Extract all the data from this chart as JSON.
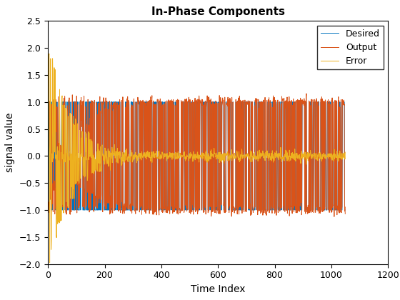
{
  "title": "In-Phase Components",
  "xlabel": "Time Index",
  "ylabel": "signal value",
  "xlim": [
    0,
    1200
  ],
  "ylim": [
    -2,
    2.5
  ],
  "xticks": [
    0,
    200,
    400,
    600,
    800,
    1000,
    1200
  ],
  "yticks": [
    -2,
    -1.5,
    -1,
    -0.5,
    0,
    0.5,
    1,
    1.5,
    2,
    2.5
  ],
  "desired_color": "#0072BD",
  "output_color": "#D95319",
  "error_color": "#EDB120",
  "n_samples": 1050,
  "seed": 42,
  "legend_labels": [
    "Desired",
    "Output",
    "Error"
  ],
  "title_fontsize": 11,
  "label_fontsize": 10,
  "background_color": "#FFFFFF",
  "axes_background": "#FFFFFF",
  "linewidth": 0.7
}
